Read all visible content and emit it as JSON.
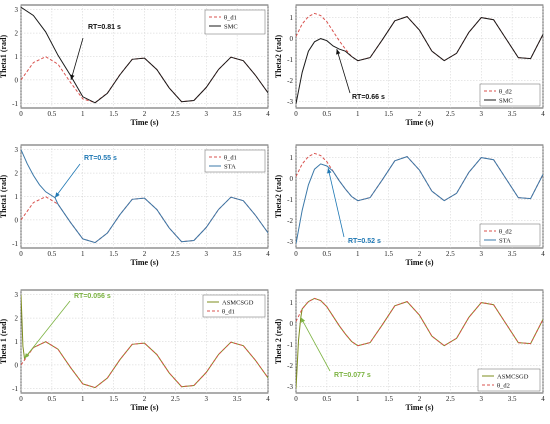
{
  "colors": {
    "ref": "#d9534f",
    "smc": "#1a1a1a",
    "sta": "#3b78a8",
    "asm": "#7d8c1e",
    "ann_black": "#111111",
    "ann_blue": "#1f78b4",
    "ann_green": "#7cb342"
  },
  "chart_data": [
    {
      "type": "line",
      "xlabel": "Time (s)",
      "ylabel": "Theta1 (rad)",
      "xlim": [
        0,
        4
      ],
      "ylim": [
        -1.2,
        3.2
      ],
      "xticks": [
        "0",
        "0.5",
        "1",
        "1.5",
        "2",
        "2.5",
        "3",
        "3.5",
        "4"
      ],
      "yticks": [
        "-1",
        "0",
        "1",
        "2",
        "3"
      ],
      "grid": true,
      "legend_position": "top-right",
      "legend": [
        "θ_d1",
        "SMC"
      ],
      "annotation": "RT=0.81 s",
      "series": [
        {
          "name": "θ_d1",
          "style": "dashed",
          "x": [
            0,
            0.2,
            0.4,
            0.6,
            0.8,
            1.0,
            1.2,
            1.4,
            1.6,
            1.8,
            2.0,
            2.2,
            2.4,
            2.6,
            2.8,
            3.0,
            3.2,
            3.4,
            3.6,
            3.8,
            4.0
          ],
          "y": [
            0,
            0.74,
            0.99,
            0.67,
            -0.1,
            -0.81,
            -0.97,
            -0.56,
            0.22,
            0.88,
            0.93,
            0.44,
            -0.34,
            -0.93,
            -0.88,
            -0.32,
            0.45,
            0.97,
            0.82,
            0.19,
            -0.55
          ]
        },
        {
          "name": "SMC",
          "style": "solid",
          "x": [
            0,
            0.2,
            0.4,
            0.6,
            0.8,
            1.0,
            1.2,
            1.4,
            1.6,
            1.8,
            2.0,
            2.2,
            2.4,
            2.6,
            2.8,
            3.0,
            3.2,
            3.4,
            3.6,
            3.8,
            4.0
          ],
          "y": [
            3.1,
            2.75,
            2.05,
            1.05,
            0.2,
            -0.72,
            -0.98,
            -0.57,
            0.21,
            0.88,
            0.93,
            0.44,
            -0.34,
            -0.93,
            -0.88,
            -0.32,
            0.45,
            0.97,
            0.82,
            0.19,
            -0.55
          ]
        }
      ]
    },
    {
      "type": "line",
      "xlabel": "Time (s)",
      "ylabel": "Theta2 (rad)",
      "xlim": [
        0,
        4
      ],
      "ylim": [
        -3.3,
        1.6
      ],
      "xticks": [
        "0",
        "0.5",
        "1",
        "1.5",
        "2",
        "2.5",
        "3",
        "3.5",
        "4"
      ],
      "yticks": [
        "-3",
        "-2",
        "-1",
        "0",
        "1"
      ],
      "grid": true,
      "legend_position": "bottom-right",
      "legend": [
        "θ_d2",
        "SMC"
      ],
      "annotation": "RT=0.66 s",
      "series": [
        {
          "name": "θ_d2",
          "style": "dashed",
          "x": [
            0,
            0.1,
            0.2,
            0.3,
            0.4,
            0.5,
            0.6,
            0.7,
            0.8,
            0.9,
            1.0,
            1.2,
            1.4,
            1.6,
            1.8,
            2.0,
            2.2,
            2.4,
            2.6,
            2.8,
            3.0,
            3.2,
            3.4,
            3.6,
            3.8,
            4.0
          ],
          "y": [
            0.1,
            0.7,
            1.05,
            1.2,
            1.1,
            0.8,
            0.35,
            -0.1,
            -0.5,
            -0.85,
            -1.05,
            -0.9,
            -0.05,
            0.85,
            1.05,
            0.4,
            -0.6,
            -1.05,
            -0.7,
            0.3,
            1.0,
            0.9,
            0.0,
            -0.9,
            -0.95,
            0.2
          ]
        },
        {
          "name": "SMC",
          "style": "solid",
          "x": [
            0,
            0.1,
            0.2,
            0.3,
            0.4,
            0.5,
            0.6,
            0.7,
            0.8,
            0.9,
            1.0,
            1.2,
            1.4,
            1.6,
            1.8,
            2.0,
            2.2,
            2.4,
            2.6,
            2.8,
            3.0,
            3.2,
            3.4,
            3.6,
            3.8,
            4.0
          ],
          "y": [
            -3.1,
            -1.6,
            -0.6,
            -0.15,
            0.0,
            -0.1,
            -0.35,
            -0.5,
            -0.6,
            -0.85,
            -1.05,
            -0.9,
            -0.05,
            0.85,
            1.05,
            0.4,
            -0.6,
            -1.05,
            -0.7,
            0.3,
            1.0,
            0.9,
            0.0,
            -0.9,
            -0.95,
            0.2
          ]
        }
      ]
    },
    {
      "type": "line",
      "xlabel": "Time (s)",
      "ylabel": "Theta1 (rad)",
      "xlim": [
        0,
        4
      ],
      "ylim": [
        -1.2,
        3.2
      ],
      "xticks": [
        "0",
        "0.5",
        "1",
        "1.5",
        "2",
        "2.5",
        "3",
        "3.5",
        "4"
      ],
      "yticks": [
        "-1",
        "0",
        "1",
        "2",
        "3"
      ],
      "grid": true,
      "legend_position": "top-right",
      "legend": [
        "θ_d1",
        "STA"
      ],
      "annotation": "RT=0.55 s",
      "series": [
        {
          "name": "θ_d1",
          "style": "dashed",
          "x": [
            0,
            0.2,
            0.4,
            0.6,
            0.8,
            1.0,
            1.2,
            1.4,
            1.6,
            1.8,
            2.0,
            2.2,
            2.4,
            2.6,
            2.8,
            3.0,
            3.2,
            3.4,
            3.6,
            3.8,
            4.0
          ],
          "y": [
            0,
            0.74,
            0.99,
            0.67,
            -0.1,
            -0.81,
            -0.97,
            -0.56,
            0.22,
            0.88,
            0.93,
            0.44,
            -0.34,
            -0.93,
            -0.88,
            -0.32,
            0.45,
            0.97,
            0.82,
            0.19,
            -0.55
          ]
        },
        {
          "name": "STA",
          "style": "solid",
          "x": [
            0,
            0.1,
            0.2,
            0.3,
            0.4,
            0.55,
            0.6,
            0.8,
            1.0,
            1.2,
            1.4,
            1.6,
            1.8,
            2.0,
            2.2,
            2.4,
            2.6,
            2.8,
            3.0,
            3.2,
            3.4,
            3.6,
            3.8,
            4.0
          ],
          "y": [
            3.0,
            2.4,
            1.9,
            1.5,
            1.2,
            0.95,
            0.67,
            -0.1,
            -0.81,
            -0.97,
            -0.56,
            0.22,
            0.88,
            0.93,
            0.44,
            -0.34,
            -0.93,
            -0.88,
            -0.32,
            0.45,
            0.97,
            0.82,
            0.19,
            -0.55
          ]
        }
      ]
    },
    {
      "type": "line",
      "xlabel": "Time (s)",
      "ylabel": "Theta2 (rad)",
      "xlim": [
        0,
        4
      ],
      "ylim": [
        -3.3,
        1.6
      ],
      "xticks": [
        "0",
        "0.5",
        "1",
        "1.5",
        "2",
        "2.5",
        "3",
        "3.5",
        "4"
      ],
      "yticks": [
        "-3",
        "-2",
        "-1",
        "0",
        "1"
      ],
      "grid": true,
      "legend_position": "bottom-right",
      "legend": [
        "θ_d2",
        "STA"
      ],
      "annotation": "RT=0.52 s",
      "series": [
        {
          "name": "θ_d2",
          "style": "dashed",
          "x": [
            0,
            0.1,
            0.2,
            0.3,
            0.4,
            0.5,
            0.6,
            0.7,
            0.8,
            0.9,
            1.0,
            1.2,
            1.4,
            1.6,
            1.8,
            2.0,
            2.2,
            2.4,
            2.6,
            2.8,
            3.0,
            3.2,
            3.4,
            3.6,
            3.8,
            4.0
          ],
          "y": [
            0.1,
            0.7,
            1.05,
            1.2,
            1.1,
            0.8,
            0.35,
            -0.1,
            -0.5,
            -0.85,
            -1.05,
            -0.9,
            -0.05,
            0.85,
            1.05,
            0.4,
            -0.6,
            -1.05,
            -0.7,
            0.3,
            1.0,
            0.9,
            0.0,
            -0.9,
            -0.95,
            0.2
          ]
        },
        {
          "name": "STA",
          "style": "solid",
          "x": [
            0,
            0.1,
            0.2,
            0.3,
            0.4,
            0.5,
            0.6,
            0.7,
            0.8,
            0.9,
            1.0,
            1.2,
            1.4,
            1.6,
            1.8,
            2.0,
            2.2,
            2.4,
            2.6,
            2.8,
            3.0,
            3.2,
            3.4,
            3.6,
            3.8,
            4.0
          ],
          "y": [
            -3.1,
            -1.5,
            -0.3,
            0.45,
            0.7,
            0.6,
            0.35,
            -0.1,
            -0.5,
            -0.85,
            -1.05,
            -0.9,
            -0.05,
            0.85,
            1.05,
            0.4,
            -0.6,
            -1.05,
            -0.7,
            0.3,
            1.0,
            0.9,
            0.0,
            -0.9,
            -0.95,
            0.2
          ]
        }
      ]
    },
    {
      "type": "line",
      "xlabel": "Time (s)",
      "ylabel": "Theta 1 (rad)",
      "xlim": [
        0,
        4
      ],
      "ylim": [
        -1.2,
        3.2
      ],
      "xticks": [
        "0",
        "0.5",
        "1",
        "1.5",
        "2",
        "2.5",
        "3",
        "3.5",
        "4"
      ],
      "yticks": [
        "-1",
        "0",
        "1",
        "2",
        "3"
      ],
      "grid": true,
      "legend_position": "top-right",
      "legend": [
        "ASMCSGD",
        "θ_d1"
      ],
      "annotation": "RT=0.056 s",
      "series": [
        {
          "name": "ASMCSGD",
          "style": "solid",
          "x": [
            0,
            0.015,
            0.03,
            0.056,
            0.2,
            0.4,
            0.6,
            0.8,
            1.0,
            1.2,
            1.4,
            1.6,
            1.8,
            2.0,
            2.2,
            2.4,
            2.6,
            2.8,
            3.0,
            3.2,
            3.4,
            3.6,
            3.8,
            4.0
          ],
          "y": [
            3.0,
            2.0,
            0.8,
            0.28,
            0.74,
            0.99,
            0.67,
            -0.1,
            -0.81,
            -0.97,
            -0.56,
            0.22,
            0.88,
            0.93,
            0.44,
            -0.34,
            -0.93,
            -0.88,
            -0.32,
            0.45,
            0.97,
            0.82,
            0.19,
            -0.55
          ]
        },
        {
          "name": "θ_d1",
          "style": "dashed",
          "x": [
            0,
            0.2,
            0.4,
            0.6,
            0.8,
            1.0,
            1.2,
            1.4,
            1.6,
            1.8,
            2.0,
            2.2,
            2.4,
            2.6,
            2.8,
            3.0,
            3.2,
            3.4,
            3.6,
            3.8,
            4.0
          ],
          "y": [
            0,
            0.74,
            0.99,
            0.67,
            -0.1,
            -0.81,
            -0.97,
            -0.56,
            0.22,
            0.88,
            0.93,
            0.44,
            -0.34,
            -0.93,
            -0.88,
            -0.32,
            0.45,
            0.97,
            0.82,
            0.19,
            -0.55
          ]
        }
      ]
    },
    {
      "type": "line",
      "xlabel": "Time (s)",
      "ylabel": "Theta 2 (rad)",
      "xlim": [
        0,
        4
      ],
      "ylim": [
        -3.3,
        1.6
      ],
      "xticks": [
        "0",
        "0.5",
        "1",
        "1.5",
        "2",
        "2.5",
        "3",
        "3.5",
        "4"
      ],
      "yticks": [
        "-3",
        "-2",
        "-1",
        "0",
        "1"
      ],
      "grid": true,
      "legend_position": "bottom-right",
      "legend": [
        "ASMCSGD",
        "θ_d2"
      ],
      "annotation": "RT=0.077 s",
      "series": [
        {
          "name": "ASMCSGD",
          "style": "solid",
          "x": [
            0,
            0.02,
            0.04,
            0.077,
            0.1,
            0.2,
            0.3,
            0.4,
            0.5,
            0.6,
            0.7,
            0.8,
            0.9,
            1.0,
            1.2,
            1.4,
            1.6,
            1.8,
            2.0,
            2.2,
            2.4,
            2.6,
            2.8,
            3.0,
            3.2,
            3.4,
            3.6,
            3.8,
            4.0
          ],
          "y": [
            -3.1,
            -2.0,
            -0.8,
            0.3,
            0.7,
            1.05,
            1.2,
            1.1,
            0.8,
            0.35,
            -0.1,
            -0.5,
            -0.85,
            -1.05,
            -0.9,
            -0.05,
            0.85,
            1.05,
            0.4,
            -0.6,
            -1.05,
            -0.7,
            0.3,
            1.0,
            0.9,
            0.0,
            -0.9,
            -0.95,
            0.2
          ]
        },
        {
          "name": "θ_d2",
          "style": "dashed",
          "x": [
            0,
            0.1,
            0.2,
            0.3,
            0.4,
            0.5,
            0.6,
            0.7,
            0.8,
            0.9,
            1.0,
            1.2,
            1.4,
            1.6,
            1.8,
            2.0,
            2.2,
            2.4,
            2.6,
            2.8,
            3.0,
            3.2,
            3.4,
            3.6,
            3.8,
            4.0
          ],
          "y": [
            0.1,
            0.7,
            1.05,
            1.2,
            1.1,
            0.8,
            0.35,
            -0.1,
            -0.5,
            -0.85,
            -1.05,
            -0.9,
            -0.05,
            0.85,
            1.05,
            0.4,
            -0.6,
            -1.05,
            -0.7,
            0.3,
            1.0,
            0.9,
            0.0,
            -0.9,
            -0.95,
            0.2
          ]
        }
      ]
    }
  ]
}
